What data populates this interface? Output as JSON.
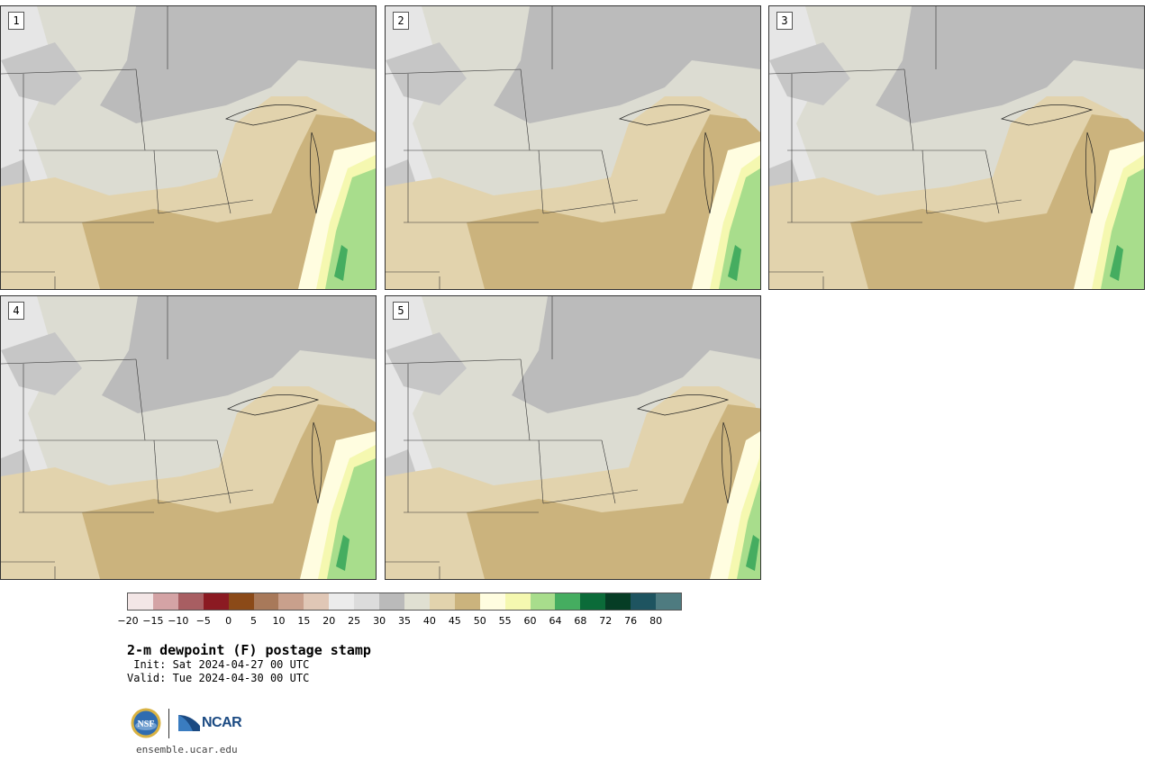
{
  "panels": [
    {
      "label": "1"
    },
    {
      "label": "2"
    },
    {
      "label": "3"
    },
    {
      "label": "4"
    },
    {
      "label": "5"
    }
  ],
  "colorbar": {
    "colors": [
      "#f3e6e6",
      "#d4a3a5",
      "#a85e62",
      "#8b1a22",
      "#8b4a18",
      "#a8795a",
      "#c9a08c",
      "#e0c7b6",
      "#ececec",
      "#dcdcdc",
      "#bababa",
      "#e0e0d2",
      "#e2d3ad",
      "#cbb37d",
      "#fffde0",
      "#f5f8b0",
      "#a8dd8c",
      "#45ad60",
      "#0b6b39",
      "#063d25",
      "#1e5460",
      "#4e7b80"
    ],
    "tick_labels": [
      "−20",
      "−15",
      "−10",
      "−5",
      "0",
      "5",
      "10",
      "15",
      "20",
      "25",
      "30",
      "35",
      "40",
      "45",
      "50",
      "55",
      "60",
      "64",
      "68",
      "72",
      "76",
      "80"
    ]
  },
  "title": "2-m dewpoint (F) postage stamp",
  "init": " Init: Sat 2024-04-27 00 UTC",
  "valid": "Valid: Tue 2024-04-30 00 UTC",
  "logos": {
    "nsf_label": "NSF",
    "ncar_label": "NCAR"
  },
  "website": "ensemble.ucar.edu"
}
